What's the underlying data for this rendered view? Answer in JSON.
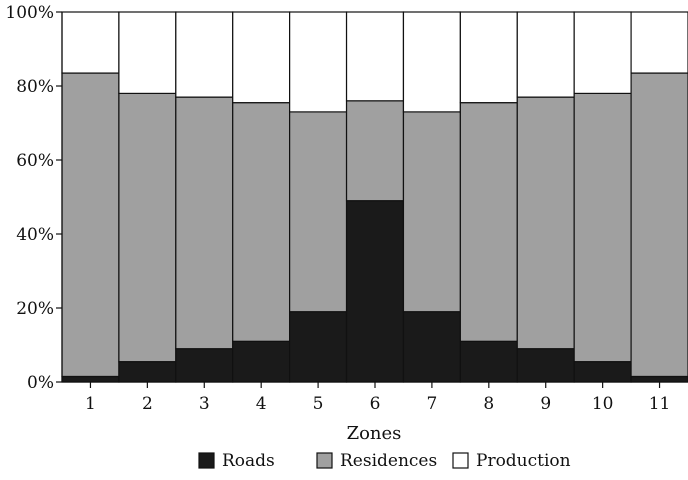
{
  "chart_data": {
    "type": "bar",
    "stacked": true,
    "normalized": true,
    "xlabel": "Zones",
    "ylabel": "",
    "ylim": [
      0,
      100
    ],
    "yticks": [
      "0%",
      "20%",
      "40%",
      "60%",
      "80%",
      "100%"
    ],
    "categories": [
      "1",
      "2",
      "3",
      "4",
      "5",
      "6",
      "7",
      "8",
      "9",
      "10",
      "11"
    ],
    "series": [
      {
        "name": "Roads",
        "color": "#1a1a1a",
        "values": [
          1.5,
          5.5,
          9,
          11,
          19,
          49,
          19,
          11,
          9,
          5.5,
          1.5
        ]
      },
      {
        "name": "Residences",
        "color": "#a0a0a0",
        "values": [
          82,
          72.5,
          68,
          64.5,
          54,
          27,
          54,
          64.5,
          68,
          72.5,
          82
        ]
      },
      {
        "name": "Production",
        "color": "#ffffff",
        "values": [
          16.5,
          22,
          23,
          24.5,
          27,
          24,
          27,
          24.5,
          23,
          22,
          16.5
        ]
      }
    ],
    "legend_position": "bottom-center",
    "grid": false
  }
}
